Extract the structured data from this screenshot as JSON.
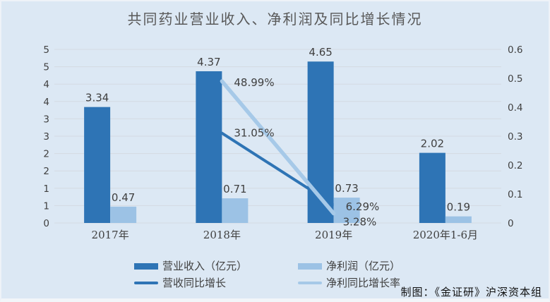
{
  "title": "共同药业营业收入、净利润及同比增长情况",
  "credit": "制图：《金证研》沪深资本组",
  "colors": {
    "background": "#dce8f4",
    "revenue_bar": "#2e74b5",
    "profit_bar": "#9cc2e5",
    "revenue_line": "#2e74b5",
    "profit_line": "#a6c9e8",
    "gridline": "#d4dae2",
    "title_text": "#595959",
    "tick_text": "#404040",
    "label_text": "#3f3f3f",
    "category_text": "#404040"
  },
  "legend": {
    "items": [
      {
        "label": "营业收入（亿元）",
        "swatch": "bar-revenue"
      },
      {
        "label": "净利润（亿元）",
        "swatch": "bar-profit"
      },
      {
        "label": "营收同比增长",
        "swatch": "line-revenue"
      },
      {
        "label": "净利同比增长率",
        "swatch": "line-profit"
      }
    ]
  },
  "chart_data": {
    "type": "bar+line",
    "title": "共同药业营业收入、净利润及同比增长情况",
    "categories": [
      "2017年",
      "2018年",
      "2019年",
      "2020年1-6月"
    ],
    "series": [
      {
        "name": "营业收入（亿元）",
        "type": "bar",
        "axis": "left",
        "values": [
          3.34,
          4.37,
          4.65,
          2.02
        ],
        "labels": [
          "3.34",
          "4.37",
          "4.65",
          "2.02"
        ]
      },
      {
        "name": "净利润（亿元）",
        "type": "bar",
        "axis": "left",
        "values": [
          0.47,
          0.71,
          0.73,
          0.19
        ],
        "labels": [
          "0.47",
          "0.71",
          "0.73",
          "0.19"
        ]
      },
      {
        "name": "营收同比增长",
        "type": "line",
        "axis": "right",
        "values": [
          null,
          0.3105,
          0.0629,
          null
        ],
        "labels": [
          null,
          "31.05%",
          "6.29%",
          null
        ]
      },
      {
        "name": "净利同比增长率",
        "type": "line",
        "axis": "right",
        "values": [
          null,
          0.4899,
          0.0328,
          null
        ],
        "labels": [
          null,
          "48.99%",
          "3.28%",
          null
        ]
      }
    ],
    "left_axis": {
      "range": [
        0,
        5
      ],
      "tick_labels": [
        "0",
        "1",
        "1",
        "2",
        "2",
        "3",
        "3",
        "4",
        "4",
        "5",
        "5"
      ]
    },
    "right_axis": {
      "range": [
        0,
        0.6
      ],
      "tick_labels": [
        "0",
        "0.1",
        "0.2",
        "0.3",
        "0.4",
        "0.5",
        "0.6"
      ]
    },
    "grid": true,
    "legend_position": "bottom"
  }
}
